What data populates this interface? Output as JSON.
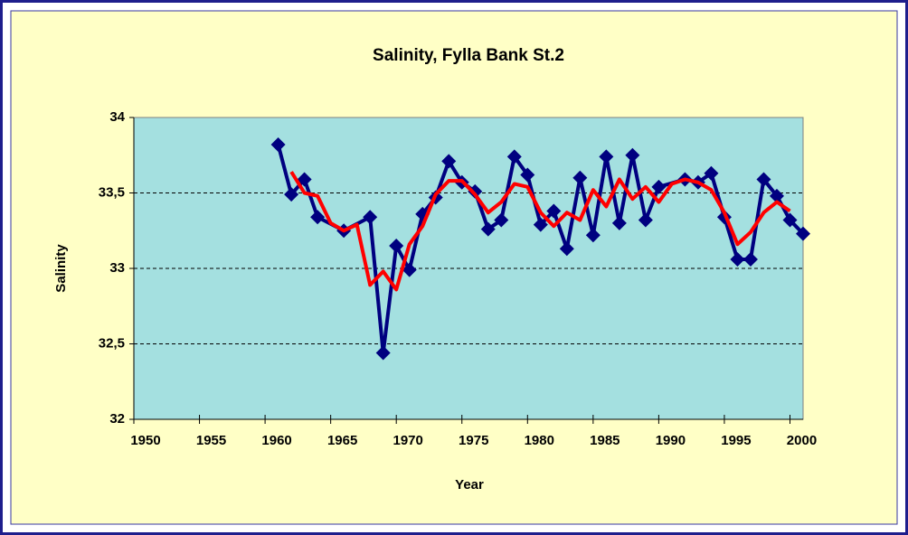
{
  "chart_data": {
    "type": "line",
    "title": "Salinity, Fylla Bank St.2",
    "x_label": "Year",
    "y_label": "Salinity",
    "xlim": [
      1950,
      2001
    ],
    "xticks": [
      1950,
      1955,
      1960,
      1965,
      1970,
      1975,
      1980,
      1985,
      1990,
      1995,
      2000
    ],
    "ylim": [
      32,
      34
    ],
    "yticks": [
      32,
      {
        "value": 32.5,
        "label": "32,5"
      },
      33,
      {
        "value": 33.5,
        "label": "33,5"
      },
      34
    ],
    "grid": true,
    "series": [
      {
        "color": "#000080",
        "marker": "diamond",
        "x": [
          1961,
          1962,
          1963,
          1964,
          1966,
          1968,
          1969,
          1970,
          1971,
          1972,
          1973,
          1974,
          1975,
          1976,
          1977,
          1978,
          1979,
          1980,
          1981,
          1982,
          1983,
          1984,
          1985,
          1986,
          1987,
          1988,
          1989,
          1990,
          1992,
          1993,
          1994,
          1995,
          1996,
          1997,
          1998,
          1999,
          2000,
          2001
        ],
        "values": [
          33.82,
          33.49,
          33.59,
          33.34,
          33.25,
          33.34,
          32.44,
          33.15,
          32.99,
          33.36,
          33.47,
          33.71,
          33.57,
          33.51,
          33.26,
          33.32,
          33.74,
          33.62,
          33.29,
          33.38,
          33.13,
          33.6,
          33.22,
          33.74,
          33.3,
          33.75,
          33.32,
          33.54,
          33.59,
          33.57,
          33.63,
          33.34,
          33.06,
          33.06,
          33.59,
          33.48,
          33.32,
          33.23
        ]
      },
      {
        "color": "#ff0000",
        "x": [
          1962,
          1963,
          1964,
          1965,
          1966,
          1967,
          1968,
          1969,
          1970,
          1971,
          1972,
          1973,
          1974,
          1975,
          1976,
          1977,
          1978,
          1979,
          1980,
          1981,
          1982,
          1983,
          1984,
          1985,
          1986,
          1987,
          1988,
          1989,
          1990,
          1991,
          1992,
          1993,
          1994,
          1995,
          1996,
          1997,
          1998,
          1999,
          2000
        ],
        "values": [
          33.64,
          33.5,
          33.48,
          33.3,
          33.25,
          33.29,
          32.89,
          32.98,
          32.86,
          33.16,
          33.28,
          33.49,
          33.58,
          33.58,
          33.49,
          33.37,
          33.44,
          33.56,
          33.54,
          33.37,
          33.28,
          33.37,
          33.32,
          33.52,
          33.41,
          33.59,
          33.46,
          33.54,
          33.44,
          33.56,
          33.59,
          33.57,
          33.52,
          33.37,
          33.16,
          33.24,
          33.37,
          33.44,
          33.38
        ]
      }
    ]
  }
}
